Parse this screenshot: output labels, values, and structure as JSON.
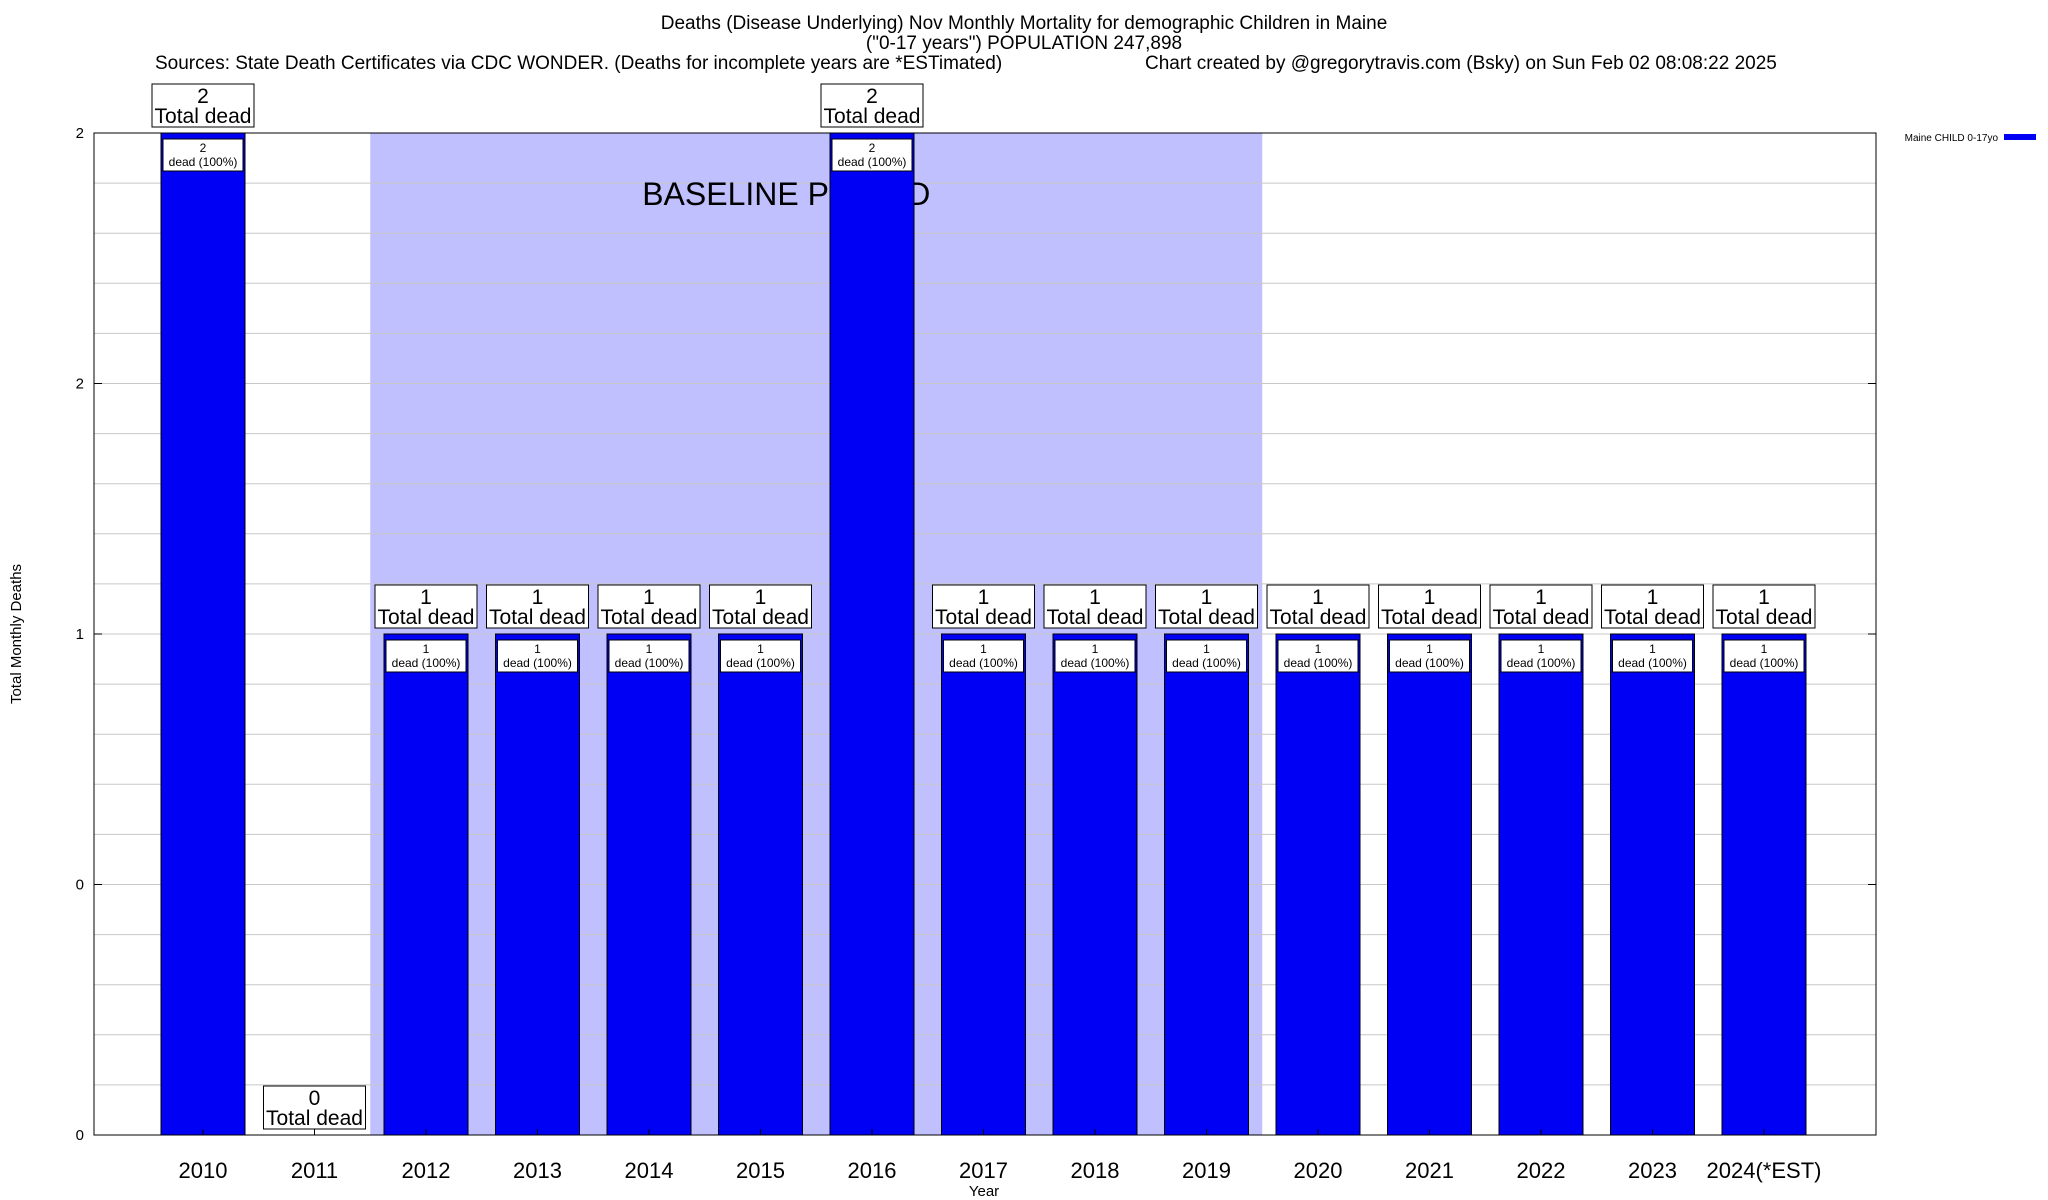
{
  "chart_data": {
    "type": "bar",
    "title_lines": [
      "Deaths (Disease Underlying) Nov Monthly Mortality for demographic Children in Maine",
      "(\"0-17 years\") POPULATION 247,898"
    ],
    "sources": "Sources: State Death Certificates via CDC WONDER. (Deaths for incomplete years are *ESTimated)",
    "credit": "Chart created by @gregorytravis.com (Bsky) on Sun Feb 02 08:08:22 2025",
    "xlabel": "Year",
    "ylabel": "Total Monthly Deaths",
    "ylim": [
      0,
      2
    ],
    "yticks": [
      {
        "value": 0,
        "label": "0"
      },
      {
        "value": 0.5,
        "label": "0"
      },
      {
        "value": 1,
        "label": "1"
      },
      {
        "value": 1.5,
        "label": "2"
      },
      {
        "value": 2,
        "label": "2"
      }
    ],
    "categories": [
      "2010",
      "2011",
      "2012",
      "2013",
      "2014",
      "2015",
      "2016",
      "2017",
      "2018",
      "2019",
      "2020",
      "2021",
      "2022",
      "2023",
      "2024(*EST)"
    ],
    "series": [
      {
        "name": "Maine CHILD 0-17yo",
        "values": [
          2,
          0,
          1,
          1,
          1,
          1,
          2,
          1,
          1,
          1,
          1,
          1,
          1,
          1,
          1
        ],
        "color": "#0000f5"
      }
    ],
    "total_labels": [
      {
        "top": "2",
        "bottom": "Total dead"
      },
      {
        "top": "0",
        "bottom": "Total dead"
      },
      {
        "top": "1",
        "bottom": "Total dead"
      },
      {
        "top": "1",
        "bottom": "Total dead"
      },
      {
        "top": "1",
        "bottom": "Total dead"
      },
      {
        "top": "1",
        "bottom": "Total dead"
      },
      {
        "top": "2",
        "bottom": "Total dead"
      },
      {
        "top": "1",
        "bottom": "Total dead"
      },
      {
        "top": "1",
        "bottom": "Total dead"
      },
      {
        "top": "1",
        "bottom": "Total dead"
      },
      {
        "top": "1",
        "bottom": "Total dead"
      },
      {
        "top": "1",
        "bottom": "Total dead"
      },
      {
        "top": "1",
        "bottom": "Total dead"
      },
      {
        "top": "1",
        "bottom": "Total dead"
      },
      {
        "top": "1",
        "bottom": "Total dead"
      }
    ],
    "segment_labels": [
      {
        "top": "2",
        "bottom": "dead (100%)"
      },
      null,
      {
        "top": "1",
        "bottom": "dead (100%)"
      },
      {
        "top": "1",
        "bottom": "dead (100%)"
      },
      {
        "top": "1",
        "bottom": "dead (100%)"
      },
      {
        "top": "1",
        "bottom": "dead (100%)"
      },
      {
        "top": "2",
        "bottom": "dead (100%)"
      },
      {
        "top": "1",
        "bottom": "dead (100%)"
      },
      {
        "top": "1",
        "bottom": "dead (100%)"
      },
      {
        "top": "1",
        "bottom": "dead (100%)"
      },
      {
        "top": "1",
        "bottom": "dead (100%)"
      },
      {
        "top": "1",
        "bottom": "dead (100%)"
      },
      {
        "top": "1",
        "bottom": "dead (100%)"
      },
      {
        "top": "1",
        "bottom": "dead (100%)"
      },
      {
        "top": "1",
        "bottom": "dead (100%)"
      }
    ],
    "baseline_period": {
      "label": "BASELINE PERIOD",
      "from": "2012",
      "to": "2019",
      "color": "#c0c0ff"
    },
    "grid": true,
    "legend_position": "top-right",
    "colors": {
      "bar": "#0000f5",
      "bar_border": "#000000",
      "baseline": "#c0c0ff",
      "grid": "#c8c8c8"
    }
  }
}
